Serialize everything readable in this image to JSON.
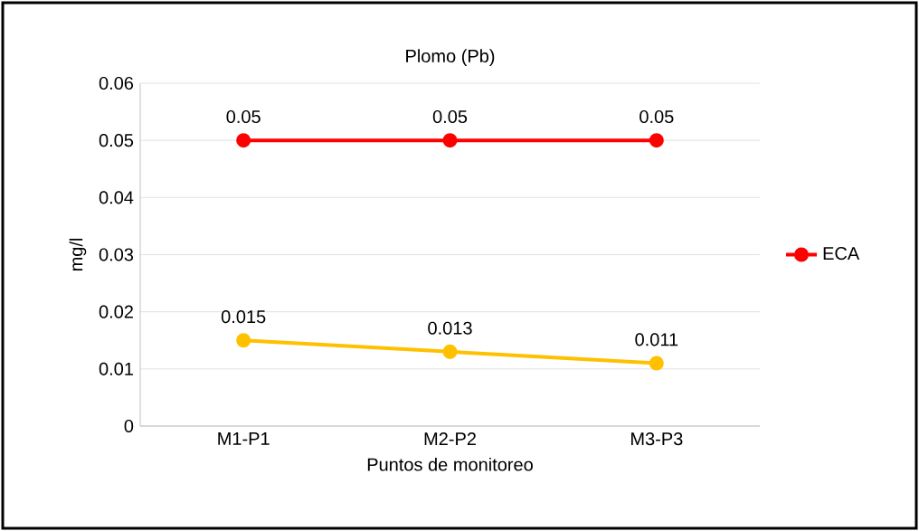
{
  "chart_data": {
    "type": "line",
    "title": "Plomo (Pb)",
    "xlabel": "Puntos de monitoreo",
    "ylabel": "mg/l",
    "categories": [
      "M1-P1",
      "M2-P2",
      "M3-P3"
    ],
    "series": [
      {
        "name": "ECA",
        "color": "#ff0000",
        "values": [
          0.05,
          0.05,
          0.05
        ]
      },
      {
        "color": "#ffc000",
        "values": [
          0.015,
          0.013,
          0.011
        ]
      }
    ],
    "ylim": [
      0,
      0.06
    ],
    "yticks": [
      0,
      0.01,
      0.02,
      0.03,
      0.04,
      0.05,
      0.06
    ],
    "grid": "y",
    "legend": "right",
    "marker": "circle",
    "line_style": "solid",
    "data_labels": true
  }
}
